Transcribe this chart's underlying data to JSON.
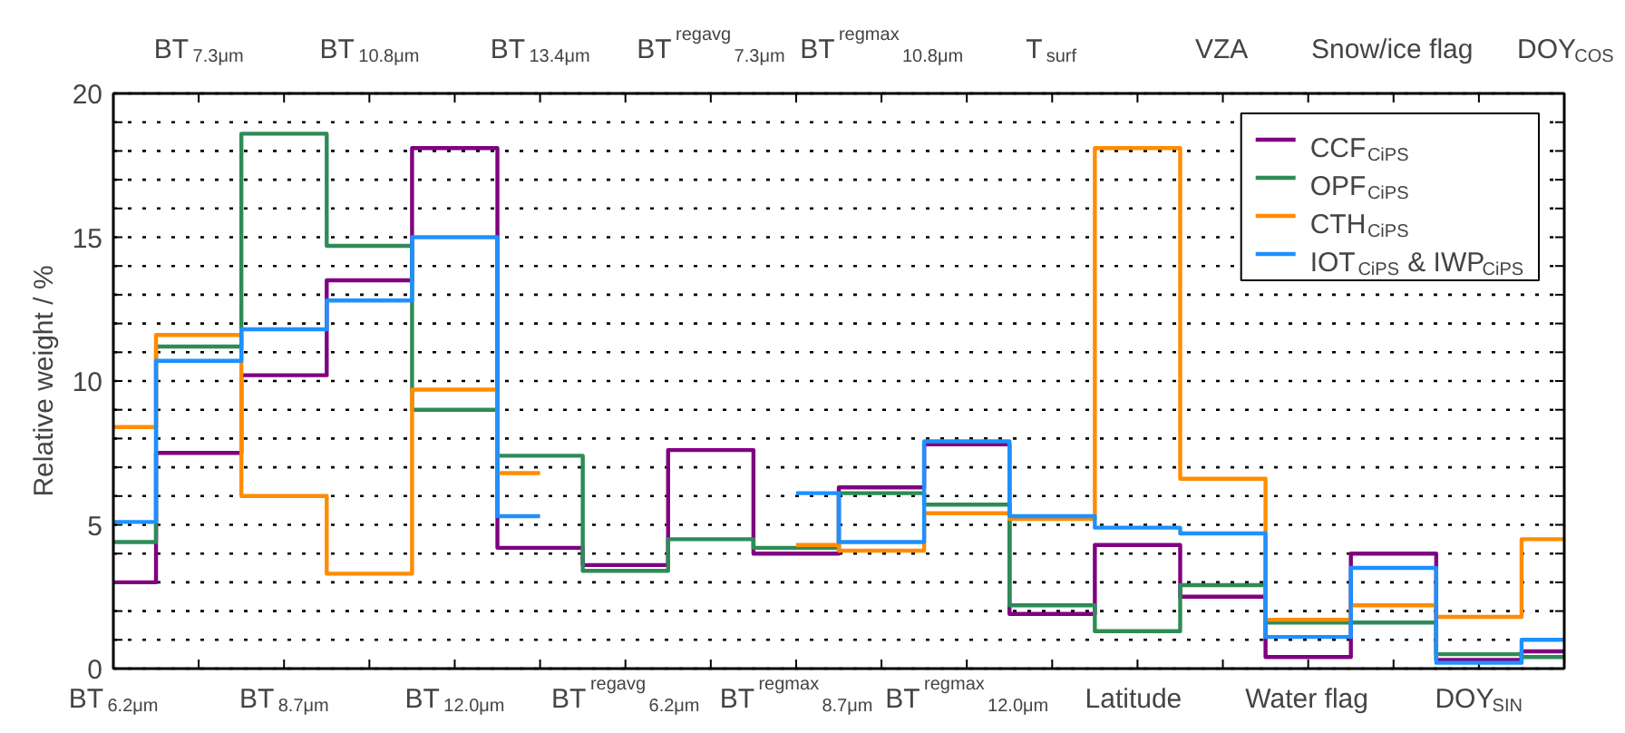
{
  "chart_data": {
    "type": "step",
    "categories": [
      "BT$_{6.2μm}$",
      "BT$_{7.3μm}$",
      "BT$_{8.7μm}$",
      "BT$_{10.8μm}$",
      "BT$_{12.0μm}$",
      "BT$_{13.4μm}$",
      "BT$^{regavg}$$_{6.2μm}$",
      "BT$^{regavg}$$_{7.3μm}$",
      "BT$^{regmax}$$_{8.7μm}$",
      "BT$^{regmax}$$_{10.8μm}$",
      "BT$^{regmax}$$_{12.0μm}$",
      "T$_{surf}$",
      "Latitude",
      "VZA",
      "Water flag",
      "Snow/ice flag",
      "DOY$_{SIN}$",
      "DOY$_{COS}$"
    ],
    "ylabel": "Relative weight / %",
    "ylim": [
      0,
      20
    ],
    "yticks": [
      0,
      {
        "value": 1,
        "label": null
      },
      {
        "value": 2,
        "label": null
      },
      {
        "value": 3,
        "label": null
      },
      {
        "value": 4,
        "label": null
      },
      5,
      {
        "value": 6,
        "label": null
      },
      {
        "value": 7,
        "label": null
      },
      {
        "value": 8,
        "label": null
      },
      {
        "value": 9,
        "label": null
      },
      10,
      {
        "value": 11,
        "label": null
      },
      {
        "value": 12,
        "label": null
      },
      {
        "value": 13,
        "label": null
      },
      {
        "value": 14,
        "label": null
      },
      15,
      {
        "value": 16,
        "label": null
      },
      {
        "value": 17,
        "label": null
      },
      {
        "value": 18,
        "label": null
      },
      {
        "value": 19,
        "label": null
      },
      20
    ],
    "grid": "y",
    "legend": "top right",
    "series": [
      {
        "name": "CCF$_{CiPS}$",
        "color": "#800080",
        "values": [
          3.0,
          7.5,
          10.2,
          13.5,
          18.1,
          4.2,
          3.6,
          7.6,
          4.0,
          6.3,
          7.8,
          1.9,
          4.3,
          2.5,
          0.4,
          4.0,
          0.3,
          0.6
        ]
      },
      {
        "name": "OPF$_{CiPS}$",
        "color": "#2e8b57",
        "values": [
          4.4,
          11.2,
          18.6,
          14.7,
          9.0,
          7.4,
          3.4,
          4.5,
          4.2,
          6.1,
          5.7,
          2.2,
          1.3,
          2.9,
          1.6,
          1.6,
          0.5,
          0.4
        ]
      },
      {
        "name": "CTH$_{CiPS}$",
        "color": "#ff8c00",
        "values": [
          8.4,
          11.6,
          6.0,
          3.3,
          9.7,
          6.8,
          null,
          null,
          4.3,
          4.1,
          5.4,
          5.2,
          18.1,
          6.6,
          1.7,
          2.2,
          1.8,
          4.5
        ]
      },
      {
        "name": "IOT$_{CiPS}$ & IWP$_{CiPS}$",
        "color": "#1e90ff",
        "values": [
          5.1,
          10.7,
          11.8,
          12.8,
          15.0,
          5.3,
          null,
          null,
          6.1,
          4.4,
          7.9,
          5.3,
          4.9,
          4.7,
          1.1,
          3.5,
          0.2,
          1.0
        ]
      }
    ]
  }
}
